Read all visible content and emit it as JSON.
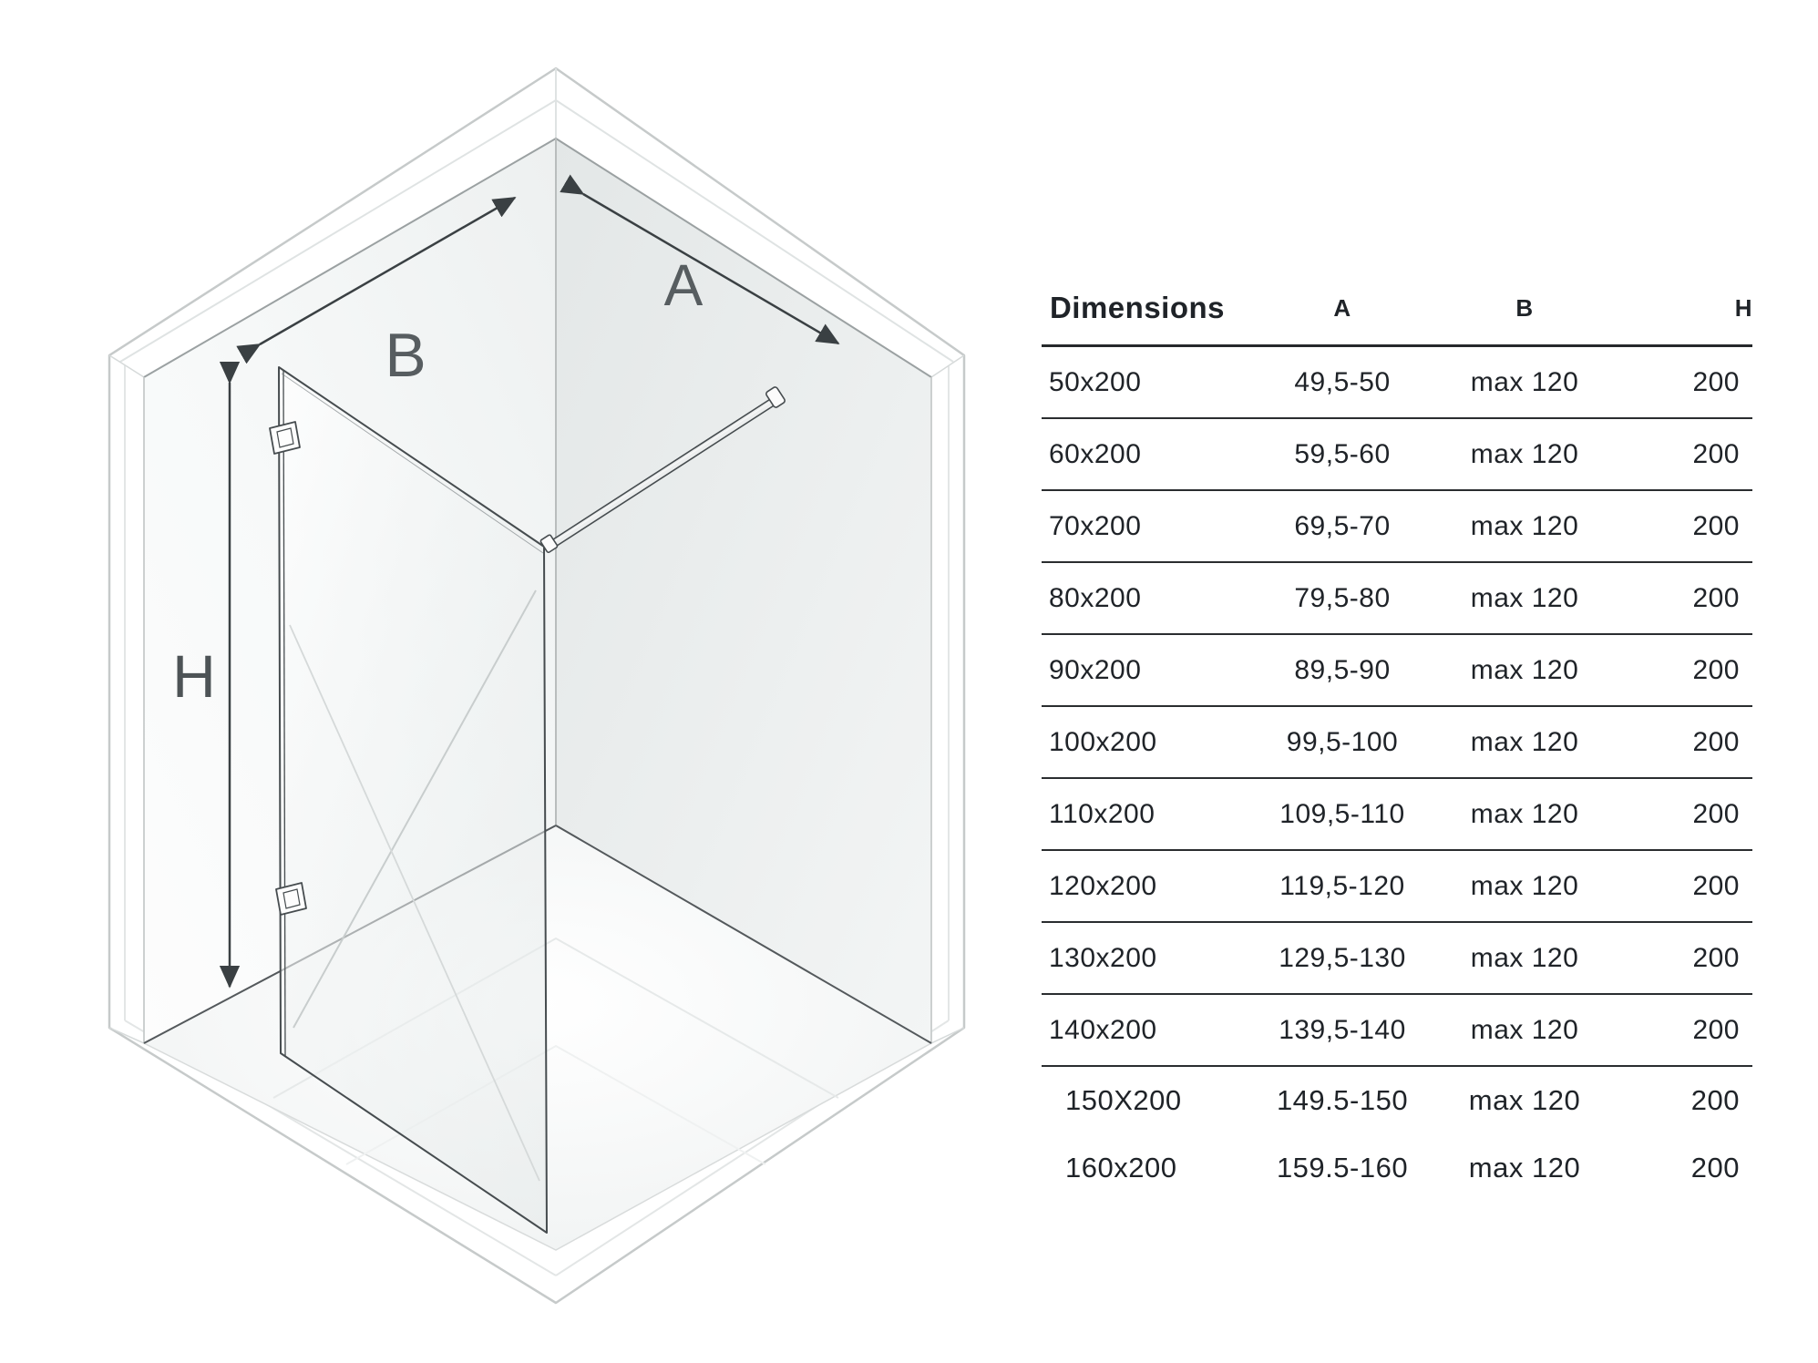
{
  "diagram": {
    "label_a": "A",
    "label_b": "B",
    "label_h": "H"
  },
  "table": {
    "headers": [
      "Dimensions",
      "A",
      "B",
      "H"
    ],
    "rows": [
      [
        "50x200",
        "49,5-50",
        "max 120",
        "200"
      ],
      [
        "60x200",
        "59,5-60",
        "max 120",
        "200"
      ],
      [
        "70x200",
        "69,5-70",
        "max 120",
        "200"
      ],
      [
        "80x200",
        "79,5-80",
        "max 120",
        "200"
      ],
      [
        "90x200",
        "89,5-90",
        "max 120",
        "200"
      ],
      [
        "100x200",
        "99,5-100",
        "max 120",
        "200"
      ],
      [
        "110x200",
        "109,5-110",
        "max 120",
        "200"
      ],
      [
        "120x200",
        "119,5-120",
        "max 120",
        "200"
      ],
      [
        "130x200",
        "129,5-130",
        "max 120",
        "200"
      ],
      [
        "140x200",
        "139,5-140",
        "max 120",
        "200"
      ],
      [
        "150X200",
        "149.5-150",
        "max 120",
        "200"
      ],
      [
        "160x200",
        "159.5-160",
        "max 120",
        "200"
      ]
    ]
  },
  "colors": {
    "rule_line": "#26292b",
    "text": "#1f2328",
    "diagram_line": "#3a4043",
    "wall_light": "#f6f8f8",
    "wall_shaded": "#e6e9e9"
  }
}
